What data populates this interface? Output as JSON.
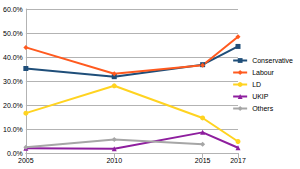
{
  "chart_data": {
    "type": "line",
    "x": [
      2005,
      2010,
      2015,
      2017
    ],
    "xlim": [
      2005,
      2017
    ],
    "xticks": [
      2005,
      2010,
      2015,
      2017
    ],
    "ylim": [
      0,
      60
    ],
    "yticks": [
      {
        "value": 0,
        "label": "0.0%"
      },
      {
        "value": 10,
        "label": "10.0%"
      },
      {
        "value": 20,
        "label": "20.0%"
      },
      {
        "value": 30,
        "label": "30.0%"
      },
      {
        "value": 40,
        "label": "40.0%"
      },
      {
        "value": 50,
        "label": "50.0%"
      },
      {
        "value": 60,
        "label": "60.0%"
      }
    ],
    "grid": true,
    "legend": "right",
    "series": [
      {
        "name": "Conservative",
        "color": "#1f4e79",
        "marker": "square",
        "values": [
          35.2,
          31.8,
          36.8,
          44.4
        ]
      },
      {
        "name": "Labour",
        "color": "#ff5a1f",
        "marker": "diamond",
        "values": [
          44.0,
          33.0,
          36.6,
          48.4
        ]
      },
      {
        "name": "LD",
        "color": "#ffd320",
        "marker": "circle",
        "values": [
          16.6,
          28.0,
          14.6,
          4.8
        ]
      },
      {
        "name": "UKIP",
        "color": "#8e1e9e",
        "marker": "triangle",
        "values": [
          2.0,
          1.8,
          8.6,
          2.2
        ]
      },
      {
        "name": "Others",
        "color": "#a6a6a6",
        "marker": "diamond",
        "values": [
          2.4,
          5.6,
          3.6,
          null
        ]
      }
    ]
  }
}
